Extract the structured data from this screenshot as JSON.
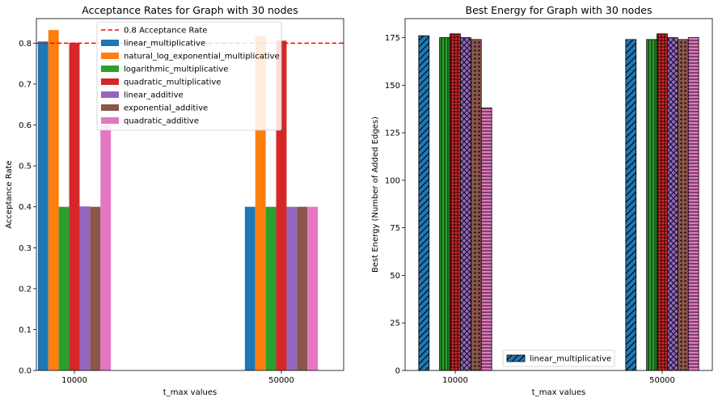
{
  "chart_data": [
    {
      "type": "bar",
      "title": "Acceptance Rates for Graph with 30 nodes",
      "xlabel": "t_max values",
      "ylabel": "Acceptance Rate",
      "categories": [
        "10000",
        "50000"
      ],
      "ylim": [
        0,
        0.86
      ],
      "yticks": [
        0.0,
        0.1,
        0.2,
        0.3,
        0.4,
        0.5,
        0.6,
        0.7,
        0.8
      ],
      "ytick_labels": [
        "0.0",
        "0.1",
        "0.2",
        "0.3",
        "0.4",
        "0.5",
        "0.6",
        "0.7",
        "0.8"
      ],
      "reference_line": {
        "y": 0.8,
        "label": "0.8 Acceptance Rate",
        "color": "#ff0000"
      },
      "legend": "upper-center",
      "series": [
        {
          "name": "linear_multiplicative",
          "color": "#1f77b4",
          "values": [
            0.804,
            0.4
          ]
        },
        {
          "name": "natural_log_exponential_multiplicative",
          "color": "#ff7f0e",
          "values": [
            0.832,
            0.818
          ]
        },
        {
          "name": "logarithmic_multiplicative",
          "color": "#2ca02c",
          "values": [
            0.4,
            0.4
          ]
        },
        {
          "name": "quadratic_multiplicative",
          "color": "#d62728",
          "values": [
            0.801,
            0.806
          ]
        },
        {
          "name": "linear_additive",
          "color": "#9467bd",
          "values": [
            0.401,
            0.4
          ]
        },
        {
          "name": "exponential_additive",
          "color": "#8c564b",
          "values": [
            0.4,
            0.4
          ]
        },
        {
          "name": "quadratic_additive",
          "color": "#e377c2",
          "values": [
            0.6,
            0.4
          ]
        }
      ]
    },
    {
      "type": "bar",
      "title": "Best Energy for Graph with 30 nodes",
      "xlabel": "t_max values",
      "ylabel": "Best Energy (Number of Added Edges)",
      "categories": [
        "10000",
        "50000"
      ],
      "ylim": [
        0,
        185
      ],
      "yticks": [
        0,
        25,
        50,
        75,
        100,
        125,
        150,
        175
      ],
      "ytick_labels": [
        "0",
        "25",
        "50",
        "75",
        "100",
        "125",
        "150",
        "175"
      ],
      "legend": "lower-center",
      "legend_entries": [
        "linear_multiplicative"
      ],
      "series": [
        {
          "name": "linear_multiplicative",
          "color": "#1f77b4",
          "hatch": "diag",
          "values": [
            176,
            174
          ]
        },
        {
          "name": "natural_log_exponential_multiplicative",
          "color": "#ff7f0e",
          "hatch": "none",
          "values": [
            0,
            0
          ]
        },
        {
          "name": "logarithmic_multiplicative",
          "color": "#2ca02c",
          "hatch": "vert",
          "values": [
            175,
            174
          ]
        },
        {
          "name": "quadratic_multiplicative",
          "color": "#d62728",
          "hatch": "grid",
          "values": [
            177,
            177
          ]
        },
        {
          "name": "linear_additive",
          "color": "#9467bd",
          "hatch": "cross",
          "values": [
            175,
            175
          ]
        },
        {
          "name": "exponential_additive",
          "color": "#8c564b",
          "hatch": "dots",
          "values": [
            174,
            174
          ]
        },
        {
          "name": "quadratic_additive",
          "color": "#e377c2",
          "hatch": "horiz",
          "values": [
            138,
            175
          ]
        }
      ]
    }
  ]
}
